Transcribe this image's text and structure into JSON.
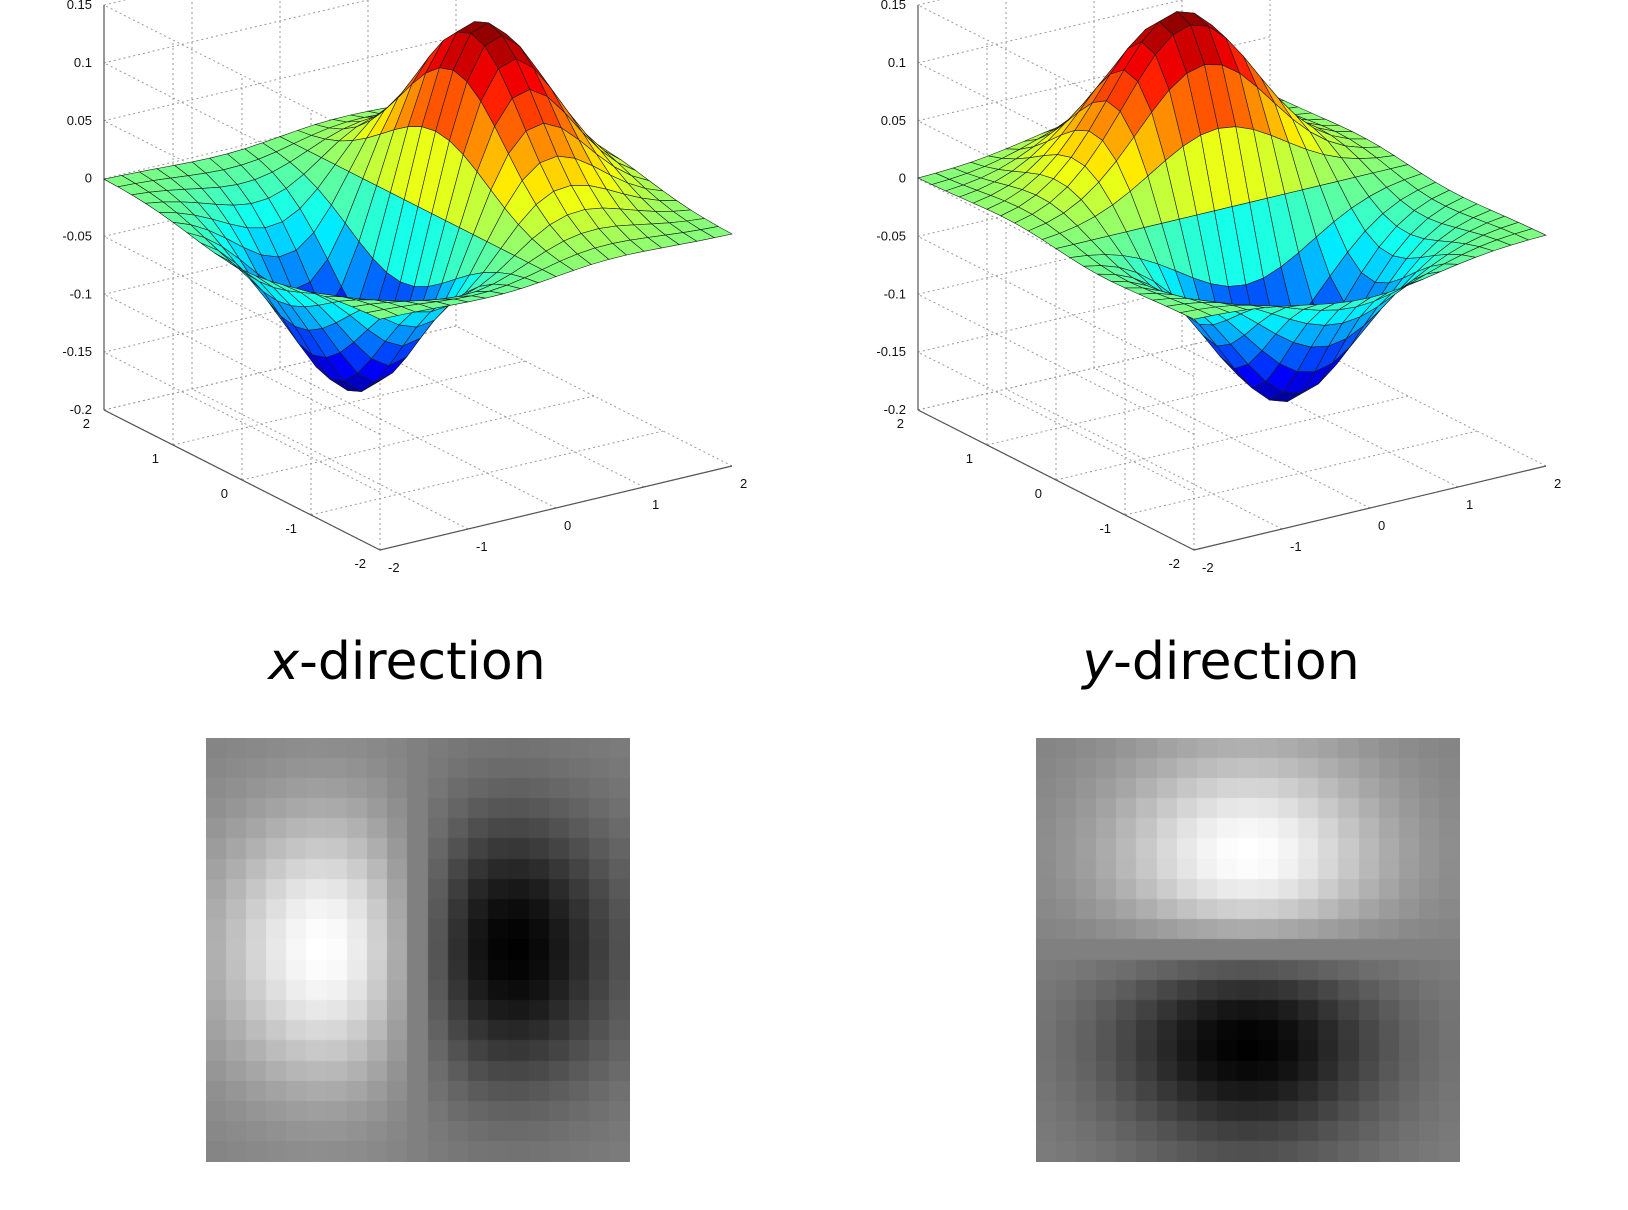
{
  "chart_data": [
    {
      "type": "surface",
      "function": "derivative of 2D Gaussian along x",
      "x_range": [
        -2,
        2
      ],
      "y_range": [
        -2,
        2
      ],
      "zlim": [
        -0.2,
        0.15
      ],
      "z_ticks": [
        "0.15",
        "0.1",
        "0.05",
        "0",
        "-0.05",
        "-0.1",
        "-0.15",
        "-0.2"
      ],
      "x_ticks": [
        "-2",
        "-1",
        "0",
        "1",
        "2"
      ],
      "y_ticks": [
        "2",
        "1",
        "0",
        "-1",
        "-2"
      ],
      "peak": 0.145,
      "trough": -0.145,
      "colormap": "jet",
      "grid": true
    },
    {
      "type": "surface",
      "function": "derivative of 2D Gaussian along y",
      "x_range": [
        -2,
        2
      ],
      "y_range": [
        -2,
        2
      ],
      "zlim": [
        -0.2,
        0.15
      ],
      "z_ticks": [
        "0.15",
        "0.1",
        "0.05",
        "0",
        "-0.05",
        "-0.1",
        "-0.15",
        "-0.2"
      ],
      "x_ticks": [
        "-2",
        "-1",
        "0",
        "1",
        "2"
      ],
      "y_ticks": [
        "2",
        "1",
        "0",
        "-1",
        "-2"
      ],
      "peak": 0.145,
      "trough": -0.145,
      "colormap": "jet",
      "grid": true
    }
  ],
  "captions": {
    "left": {
      "var": "x",
      "rest": "-direction"
    },
    "right": {
      "var": "y",
      "rest": "-direction"
    }
  },
  "kernels": {
    "left": {
      "orientation": "x",
      "colormap": "gray"
    },
    "right": {
      "orientation": "y",
      "colormap": "gray"
    }
  }
}
